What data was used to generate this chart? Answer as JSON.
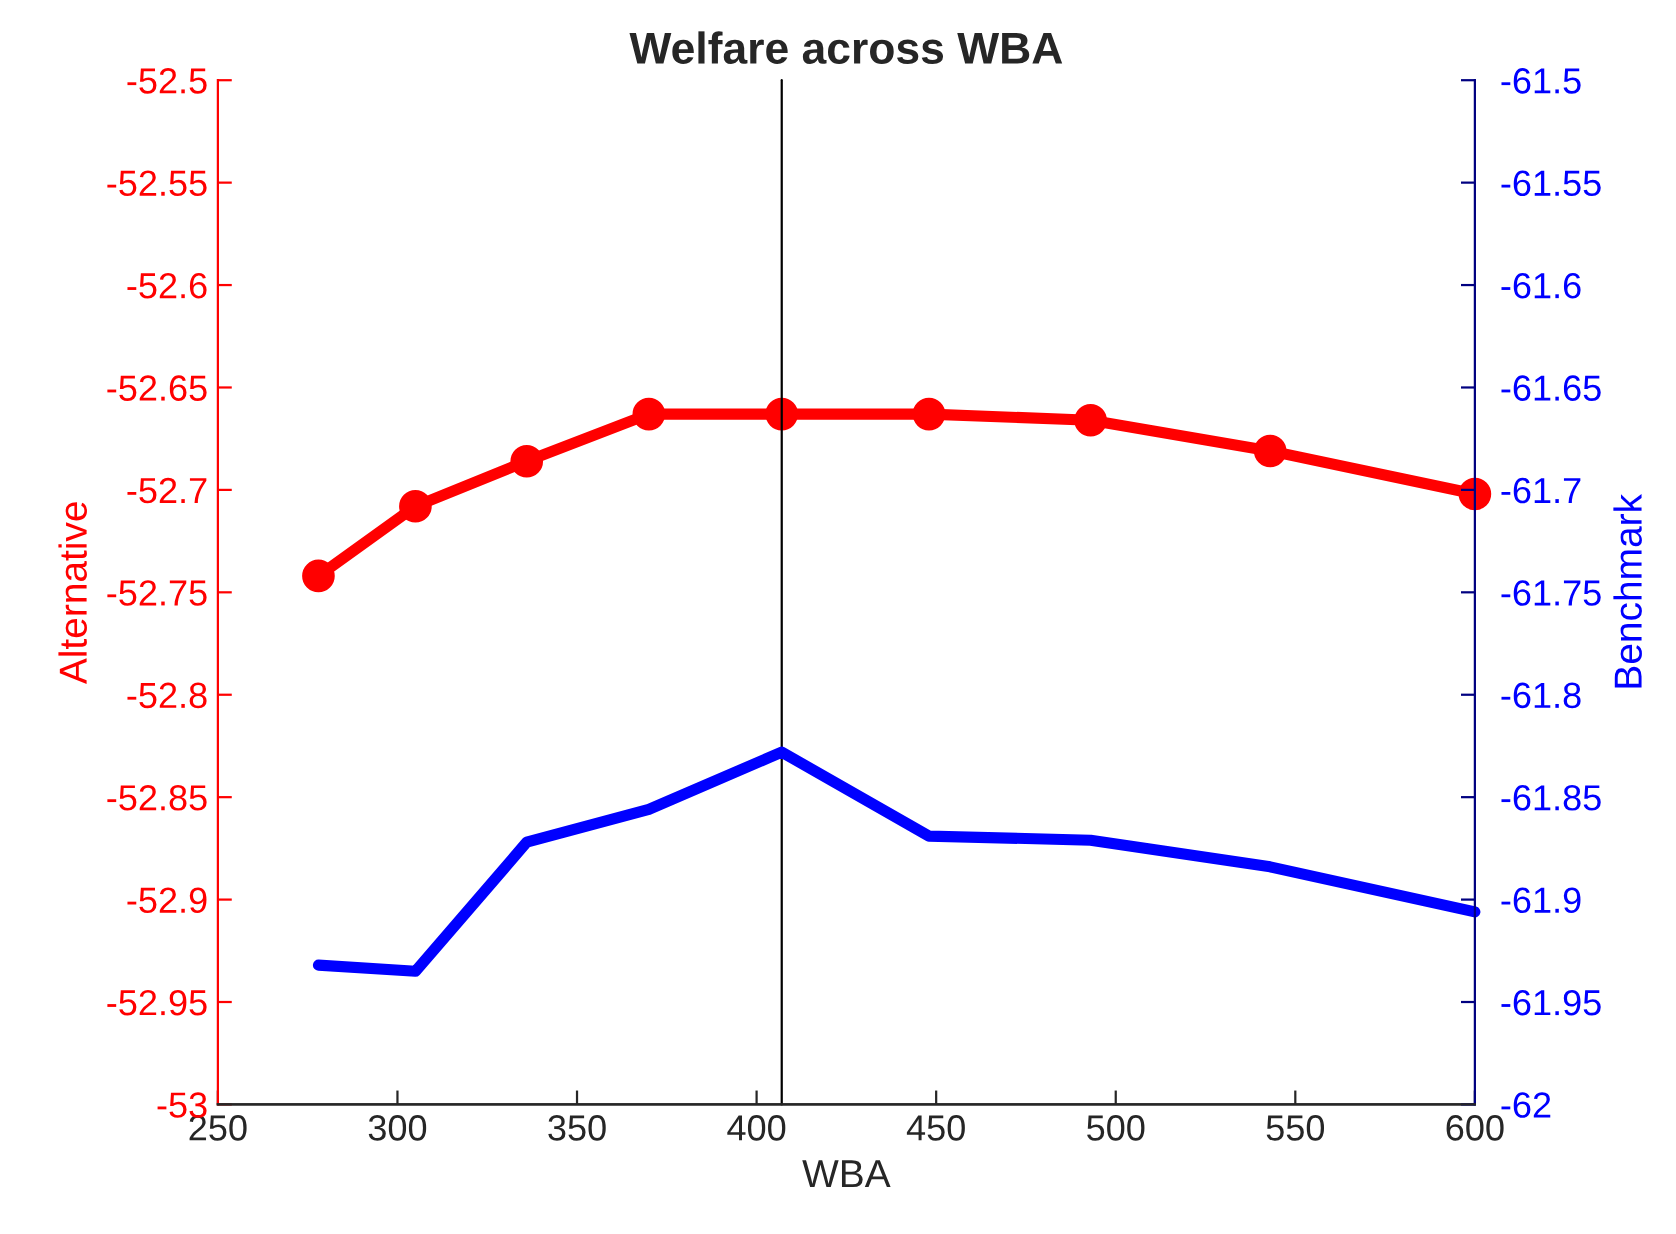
{
  "chart_data": {
    "type": "line",
    "title": "Welfare across WBA",
    "xlabel": "WBA",
    "ylabel": "Alternative",
    "y2label": "Benchmark",
    "x": [
      278,
      305,
      336,
      370,
      407,
      448,
      493,
      543,
      600
    ],
    "series": [
      {
        "color": "#ff0000",
        "marker": "circle",
        "values": [
          -52.742,
          -52.708,
          -52.686,
          -52.663,
          -52.663,
          -52.663,
          -52.666,
          -52.681,
          -52.702
        ]
      },
      {
        "color": "#0000ff",
        "axis": "y2",
        "marker": "none",
        "values": [
          -61.932,
          -61.935,
          -61.872,
          -61.856,
          -61.828,
          -61.869,
          -61.871,
          -61.884,
          -61.906
        ]
      }
    ],
    "xlim": [
      250,
      600
    ],
    "xticks": [
      250,
      300,
      350,
      400,
      450,
      500,
      550,
      600
    ],
    "ylim": [
      -53,
      -52.5
    ],
    "yticks": [
      -53,
      -52.95,
      -52.9,
      -52.85,
      -52.8,
      -52.75,
      -52.7,
      -52.65,
      -52.6,
      -52.55,
      -52.5
    ],
    "y2lim": [
      -62,
      -61.5
    ],
    "y2ticks": [
      -62,
      -61.95,
      -61.9,
      -61.85,
      -61.8,
      -61.75,
      -61.7,
      -61.65,
      -61.6,
      -61.55,
      -61.5
    ],
    "ref_lines": [
      {
        "axis": "x",
        "value": 407,
        "color": "#000000"
      }
    ],
    "grid": false,
    "legend": false
  }
}
